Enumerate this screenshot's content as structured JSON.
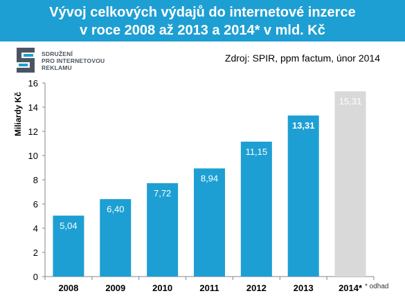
{
  "title": {
    "line1": "Vývoj celkových výdajů do internetové inzerce",
    "line2": "v roce 2008 až 2013 a 2014* v mld. Kč"
  },
  "logo": {
    "line1": "SDRUŽENÍ",
    "line2": "PRO INTERNETOVOU",
    "line3": "REKLAMU",
    "icon": "spir-logo-icon"
  },
  "source": "Zdroj: SPIR, ppm factum, únor 2014",
  "note": "* odhad",
  "colors": {
    "banner": "#1e9fd3",
    "bar": "#1e9fd3",
    "estimate_bar": "#d9d9d9"
  },
  "chart_data": {
    "type": "bar",
    "categories": [
      "2008",
      "2009",
      "2010",
      "2011",
      "2012",
      "2013",
      "2014*"
    ],
    "values": [
      5.04,
      6.4,
      7.72,
      8.94,
      11.15,
      13.31,
      15.31
    ],
    "labels": [
      "5,04",
      "6,40",
      "7,72",
      "8,94",
      "11,15",
      "13,31",
      "15,31"
    ],
    "estimated": [
      false,
      false,
      false,
      false,
      false,
      false,
      true
    ],
    "ylabel": "Miliardy Kč",
    "ylim": [
      0,
      16
    ],
    "yticks": [
      0,
      2,
      4,
      6,
      8,
      10,
      12,
      14,
      16
    ],
    "grid": false,
    "legend": "none"
  }
}
